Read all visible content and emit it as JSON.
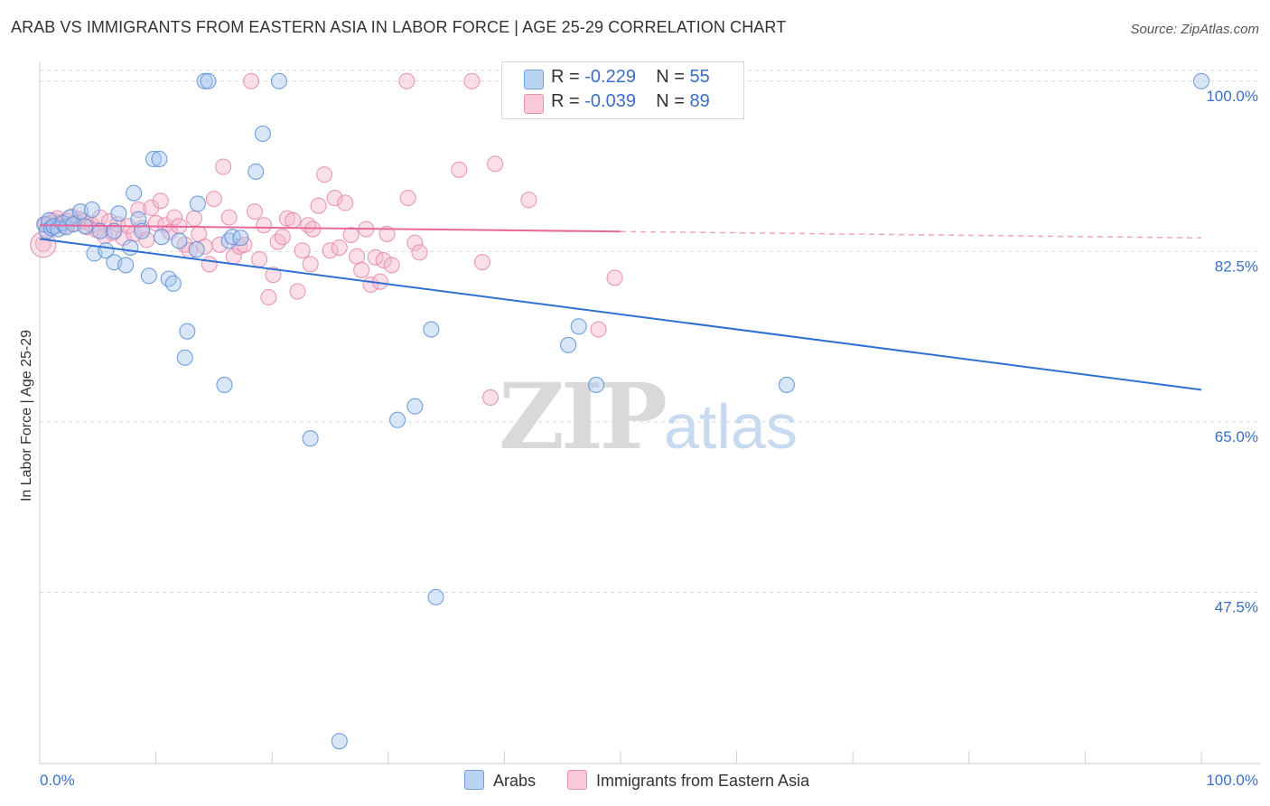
{
  "title": "ARAB VS IMMIGRANTS FROM EASTERN ASIA IN LABOR FORCE | AGE 25-29 CORRELATION CHART",
  "source": "Source: ZipAtlas.com",
  "watermark": {
    "zip": "ZIP",
    "atlas": "atlas"
  },
  "legend": {
    "arabs": {
      "r_label": "R =",
      "r_value": "-0.229",
      "n_label": "N =",
      "n_value": "55"
    },
    "immigrants": {
      "r_label": "R =",
      "r_value": "-0.039",
      "n_label": "N =",
      "n_value": "89"
    }
  },
  "bottom_legend": {
    "arabs": "Arabs",
    "immigrants": "Immigrants from Eastern Asia"
  },
  "colors": {
    "blue_fill": "#a9c8ef",
    "blue_stroke": "#5b8fd6",
    "blue_line": "#2f6fd0",
    "pink_fill": "#f5b8cc",
    "pink_stroke": "#e58aa8",
    "pink_line": "#e8679a",
    "tick_color": "#3a6fc4",
    "grid": "#d9d9d9"
  },
  "chart_data": {
    "type": "scatter",
    "title": "ARAB VS IMMIGRANTS FROM EASTERN ASIA IN LABOR FORCE | AGE 25-29 CORRELATION CHART",
    "xlabel": "",
    "ylabel": "In Labor Force | Age 25-29",
    "xlim": [
      0,
      100
    ],
    "ylim": [
      30,
      102
    ],
    "x_tick_labels": {
      "left": "0.0%",
      "right": "100.0%"
    },
    "y_ticks": [
      {
        "value": 100,
        "label": "100.0%"
      },
      {
        "value": 82.5,
        "label": "82.5%"
      },
      {
        "value": 65,
        "label": "65.0%"
      },
      {
        "value": 47.5,
        "label": "47.5%"
      }
    ],
    "series": [
      {
        "name": "Arabs",
        "color": "#a9c8ef",
        "trend": {
          "x": [
            0,
            100
          ],
          "y": [
            83.8,
            68.3
          ],
          "dashed_from": null
        },
        "points": [
          [
            0.4,
            85.3
          ],
          [
            0.6,
            84.6
          ],
          [
            0.8,
            85.7
          ],
          [
            1.0,
            84.9
          ],
          [
            1.2,
            85.1
          ],
          [
            1.6,
            84.8
          ],
          [
            2.0,
            85.4
          ],
          [
            2.3,
            85.0
          ],
          [
            2.6,
            86.0
          ],
          [
            2.9,
            85.3
          ],
          [
            3.5,
            86.6
          ],
          [
            3.9,
            85.1
          ],
          [
            4.5,
            86.8
          ],
          [
            4.7,
            82.3
          ],
          [
            5.2,
            84.6
          ],
          [
            5.7,
            82.6
          ],
          [
            6.4,
            84.6
          ],
          [
            6.4,
            81.4
          ],
          [
            6.8,
            86.4
          ],
          [
            7.4,
            81.1
          ],
          [
            7.8,
            82.9
          ],
          [
            8.1,
            88.5
          ],
          [
            8.5,
            85.8
          ],
          [
            8.8,
            84.6
          ],
          [
            9.4,
            80.0
          ],
          [
            9.8,
            92.0
          ],
          [
            10.3,
            92.0
          ],
          [
            10.5,
            84.0
          ],
          [
            11.1,
            79.7
          ],
          [
            11.5,
            79.2
          ],
          [
            12.0,
            83.6
          ],
          [
            12.5,
            71.6
          ],
          [
            12.7,
            74.3
          ],
          [
            13.5,
            82.7
          ],
          [
            13.6,
            87.4
          ],
          [
            14.2,
            100.0
          ],
          [
            14.5,
            100.0
          ],
          [
            15.9,
            68.8
          ],
          [
            16.3,
            83.6
          ],
          [
            16.6,
            84.0
          ],
          [
            17.3,
            83.9
          ],
          [
            18.6,
            90.7
          ],
          [
            19.2,
            94.6
          ],
          [
            20.6,
            100.0
          ],
          [
            23.3,
            63.3
          ],
          [
            25.8,
            32.2
          ],
          [
            30.8,
            65.2
          ],
          [
            32.3,
            66.6
          ],
          [
            33.7,
            74.5
          ],
          [
            34.1,
            47.0
          ],
          [
            45.5,
            72.9
          ],
          [
            46.4,
            74.8
          ],
          [
            47.9,
            68.8
          ],
          [
            64.3,
            68.8
          ],
          [
            100.0,
            100.0
          ]
        ]
      },
      {
        "name": "Immigrants from Eastern Asia",
        "color": "#f5b8cc",
        "trend": {
          "x": [
            0,
            100
          ],
          "y": [
            85.2,
            83.9
          ],
          "dashed_from": 50
        },
        "points": [
          [
            0.3,
            83.3
          ],
          [
            0.5,
            85.3
          ],
          [
            0.8,
            85.4
          ],
          [
            1.1,
            85.7
          ],
          [
            1.3,
            85.0
          ],
          [
            1.5,
            85.9
          ],
          [
            1.9,
            85.5
          ],
          [
            2.1,
            85.1
          ],
          [
            2.4,
            85.6
          ],
          [
            2.8,
            86.1
          ],
          [
            3.1,
            85.4
          ],
          [
            3.4,
            85.8
          ],
          [
            3.8,
            85.6
          ],
          [
            4.1,
            85.0
          ],
          [
            4.5,
            85.2
          ],
          [
            4.9,
            84.7
          ],
          [
            5.2,
            86.0
          ],
          [
            5.6,
            84.1
          ],
          [
            6.0,
            85.6
          ],
          [
            6.3,
            84.4
          ],
          [
            6.7,
            85.3
          ],
          [
            7.2,
            83.9
          ],
          [
            7.6,
            85.1
          ],
          [
            8.1,
            84.3
          ],
          [
            8.5,
            86.8
          ],
          [
            8.8,
            84.9
          ],
          [
            9.2,
            83.7
          ],
          [
            9.6,
            87.0
          ],
          [
            10.0,
            85.4
          ],
          [
            10.4,
            87.7
          ],
          [
            10.8,
            85.2
          ],
          [
            11.2,
            84.5
          ],
          [
            11.6,
            86.0
          ],
          [
            12.0,
            85.1
          ],
          [
            12.5,
            83.2
          ],
          [
            12.9,
            82.6
          ],
          [
            13.3,
            85.9
          ],
          [
            13.7,
            84.3
          ],
          [
            14.2,
            83.0
          ],
          [
            14.6,
            81.2
          ],
          [
            15.0,
            87.9
          ],
          [
            15.5,
            83.2
          ],
          [
            15.8,
            91.2
          ],
          [
            16.3,
            86.0
          ],
          [
            16.7,
            82.0
          ],
          [
            17.2,
            83.0
          ],
          [
            17.6,
            83.2
          ],
          [
            18.2,
            100.0
          ],
          [
            18.5,
            86.6
          ],
          [
            18.9,
            81.7
          ],
          [
            19.3,
            85.2
          ],
          [
            19.7,
            77.8
          ],
          [
            20.1,
            80.1
          ],
          [
            20.5,
            83.5
          ],
          [
            20.9,
            84.0
          ],
          [
            21.3,
            85.9
          ],
          [
            21.8,
            85.7
          ],
          [
            22.2,
            78.4
          ],
          [
            22.6,
            82.6
          ],
          [
            23.1,
            85.2
          ],
          [
            23.5,
            84.8
          ],
          [
            23.3,
            81.2
          ],
          [
            24.0,
            87.2
          ],
          [
            24.5,
            90.4
          ],
          [
            25.0,
            82.6
          ],
          [
            25.4,
            88.0
          ],
          [
            25.8,
            82.9
          ],
          [
            26.3,
            87.5
          ],
          [
            26.8,
            84.2
          ],
          [
            27.3,
            82.0
          ],
          [
            27.7,
            80.6
          ],
          [
            28.1,
            84.8
          ],
          [
            28.5,
            79.1
          ],
          [
            28.9,
            81.9
          ],
          [
            29.3,
            79.4
          ],
          [
            29.6,
            81.6
          ],
          [
            29.9,
            84.3
          ],
          [
            30.3,
            81.1
          ],
          [
            31.7,
            88.0
          ],
          [
            32.3,
            83.4
          ],
          [
            32.7,
            82.4
          ],
          [
            31.6,
            100.0
          ],
          [
            36.1,
            90.9
          ],
          [
            37.2,
            100.0
          ],
          [
            38.1,
            81.4
          ],
          [
            39.2,
            91.5
          ],
          [
            38.8,
            67.5
          ],
          [
            42.1,
            87.8
          ],
          [
            48.1,
            74.5
          ],
          [
            49.5,
            79.8
          ]
        ]
      }
    ]
  }
}
